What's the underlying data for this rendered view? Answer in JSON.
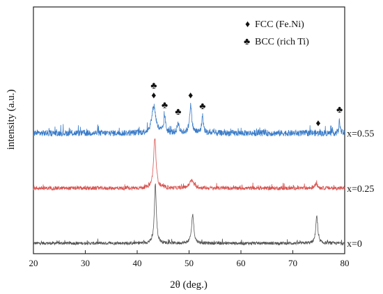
{
  "chart_data": {
    "type": "line",
    "xlabel": "2θ (deg.)",
    "ylabel": "intensity (a.u.)",
    "xlim": [
      20,
      80
    ],
    "xticks": [
      20,
      30,
      40,
      50,
      60,
      70,
      80
    ],
    "y_axis_ticks": false,
    "grid": false,
    "legend_position": "top-right",
    "legend": [
      {
        "marker": "♦",
        "label": "FCC (Fe.Ni)"
      },
      {
        "marker": "♣",
        "label": "BCC (rich Ti)"
      }
    ],
    "series": [
      {
        "name": "x=0",
        "color": "#555555",
        "baseline": 0,
        "noise": 0.05,
        "peaks": [
          {
            "x": 43.5,
            "height": 1.95,
            "width": 0.22
          },
          {
            "x": 50.7,
            "height": 0.95,
            "width": 0.25
          },
          {
            "x": 74.6,
            "height": 0.9,
            "width": 0.22
          }
        ]
      },
      {
        "name": "x=0.25",
        "color": "#d9534f",
        "baseline": 1.8,
        "noise": 0.06,
        "peaks": [
          {
            "x": 43.4,
            "height": 1.65,
            "width": 0.28
          },
          {
            "x": 50.5,
            "height": 0.25,
            "width": 0.5
          },
          {
            "x": 74.5,
            "height": 0.15,
            "width": 0.3
          }
        ]
      },
      {
        "name": "x=0.55",
        "color": "#3a7cc9",
        "baseline": 3.6,
        "noise": 0.1,
        "peaks": [
          {
            "x": 43.2,
            "height": 0.9,
            "width": 0.45
          },
          {
            "x": 45.3,
            "height": 0.55,
            "width": 0.2
          },
          {
            "x": 47.9,
            "height": 0.35,
            "width": 0.2
          },
          {
            "x": 50.3,
            "height": 0.9,
            "width": 0.25
          },
          {
            "x": 52.6,
            "height": 0.55,
            "width": 0.2
          },
          {
            "x": 79.0,
            "height": 0.45,
            "width": 0.12
          }
        ]
      }
    ],
    "phase_markers": [
      {
        "x": 43.2,
        "symbol": "♣",
        "level": 1
      },
      {
        "x": 43.2,
        "symbol": "♦",
        "level": 0
      },
      {
        "x": 45.3,
        "symbol": "♣",
        "level": 0
      },
      {
        "x": 47.9,
        "symbol": "♣",
        "level": 0
      },
      {
        "x": 50.3,
        "symbol": "♦",
        "level": 0
      },
      {
        "x": 52.6,
        "symbol": "♣",
        "level": 0
      },
      {
        "x": 74.9,
        "symbol": "♦",
        "level": 0
      },
      {
        "x": 79.0,
        "symbol": "♣",
        "level": 0
      }
    ]
  }
}
